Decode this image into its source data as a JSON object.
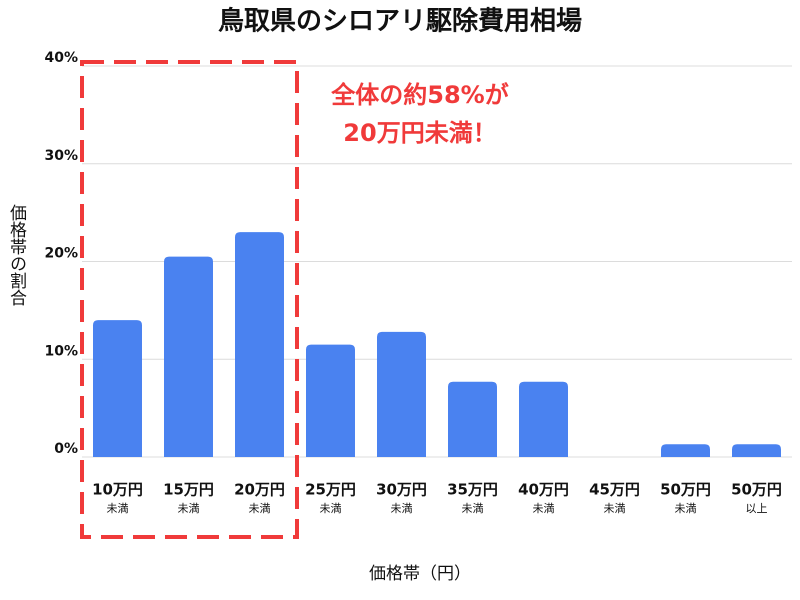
{
  "chart_data": {
    "type": "bar",
    "title": "鳥取県のシロアリ駆除費用相場",
    "y_label": "価格帯の割合",
    "x_label": "価格帯（円）",
    "annotation": [
      "全体の約58%が",
      "20万円未満！"
    ],
    "categories": [
      "10万円",
      "15万円",
      "20万円",
      "25万円",
      "30万円",
      "35万円",
      "40万円",
      "45万円",
      "50万円",
      "50万円"
    ],
    "category_notes": [
      "未満",
      "未満",
      "未満",
      "未満",
      "未満",
      "未満",
      "未満",
      "未満",
      "未満",
      "以上"
    ],
    "values": [
      14.0,
      20.5,
      23.0,
      11.5,
      12.8,
      7.7,
      7.7,
      0,
      1.3,
      1.3
    ],
    "color": "#4a82f0",
    "highlight_color": "#f03a3a",
    "ylim": [
      0,
      40
    ],
    "yticks": [
      {
        "value": 0,
        "label": "0%"
      },
      {
        "value": 10,
        "label": "10%"
      },
      {
        "value": 20,
        "label": "20%"
      },
      {
        "value": 30,
        "label": "30%"
      },
      {
        "value": 40,
        "label": "40%"
      }
    ],
    "grid": true
  }
}
